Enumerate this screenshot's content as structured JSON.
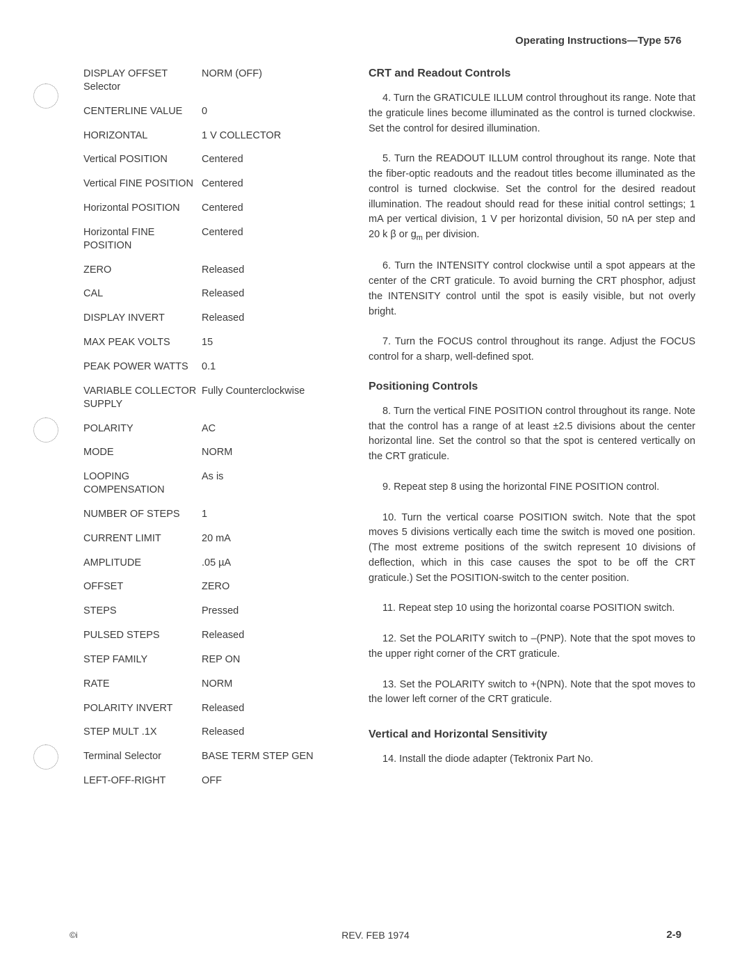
{
  "header": "Operating Instructions—Type 576",
  "settings": [
    {
      "label": "DISPLAY OFFSET Selector",
      "value": "NORM (OFF)"
    },
    {
      "label": "CENTERLINE VALUE",
      "value": "0"
    },
    {
      "label": "HORIZONTAL",
      "value": "1 V COLLECTOR"
    },
    {
      "label": "Vertical POSITION",
      "value": "Centered"
    },
    {
      "label": "Vertical FINE POSITION",
      "value": "Centered"
    },
    {
      "label": "Horizontal POSITION",
      "value": "Centered"
    },
    {
      "label": "Horizontal FINE POSITION",
      "value": "Centered"
    },
    {
      "label": "ZERO",
      "value": "Released"
    },
    {
      "label": "CAL",
      "value": "Released"
    },
    {
      "label": "DISPLAY INVERT",
      "value": "Released"
    },
    {
      "label": "MAX PEAK VOLTS",
      "value": "15"
    },
    {
      "label": "PEAK POWER WATTS",
      "value": "0.1"
    },
    {
      "label": "VARIABLE COLLECTOR SUPPLY",
      "value": "Fully Counterclockwise"
    },
    {
      "label": "POLARITY",
      "value": "AC"
    },
    {
      "label": "MODE",
      "value": "NORM"
    },
    {
      "label": "LOOPING COMPENSATION",
      "value": "As is"
    },
    {
      "label": "NUMBER OF STEPS",
      "value": "1"
    },
    {
      "label": "CURRENT LIMIT",
      "value": "20 mA"
    },
    {
      "label": "AMPLITUDE",
      "value": ".05 µA"
    },
    {
      "label": "OFFSET",
      "value": "ZERO"
    },
    {
      "label": "STEPS",
      "value": "Pressed"
    },
    {
      "label": "PULSED STEPS",
      "value": "Released"
    },
    {
      "label": "STEP FAMILY",
      "value": "REP ON"
    },
    {
      "label": "RATE",
      "value": "NORM"
    },
    {
      "label": "POLARITY INVERT",
      "value": "Released"
    },
    {
      "label": "STEP MULT .1X",
      "value": "Released"
    },
    {
      "label": "Terminal Selector",
      "value": "BASE TERM STEP GEN"
    },
    {
      "label": "LEFT-OFF-RIGHT",
      "value": "OFF"
    }
  ],
  "sections": {
    "crt": {
      "heading": "CRT and Readout Controls",
      "p4": "4. Turn the GRATICULE ILLUM control throughout its range. Note that the graticule lines become illuminated as the control is turned clockwise. Set the control for desired illumination.",
      "p5a": "5. Turn the READOUT ILLUM control throughout its range. Note that the fiber-optic readouts and the readout titles become illuminated as the control is turned clockwise. Set the control for the desired readout illumination. The readout should read for these initial control settings; 1 mA per vertical division, 1 V per horizontal division, 50 nA per step and 20 k  β or g",
      "p5b": " per division.",
      "p6": "6. Turn the INTENSITY control clockwise until a spot appears at the center of the CRT graticule. To avoid burning the CRT phosphor, adjust the INTENSITY control until the spot is easily visible, but not overly bright.",
      "p7": "7. Turn the FOCUS control throughout its range. Adjust the FOCUS control for a sharp, well-defined spot."
    },
    "positioning": {
      "heading": "Positioning Controls",
      "p8": "8. Turn the vertical FINE POSITION control throughout its range. Note that the control has a range of at least ±2.5 divisions about the center horizontal line. Set the control so that the spot is centered vertically on the CRT graticule.",
      "p9": "9. Repeat step 8 using the horizontal FINE POSITION control.",
      "p10": "10. Turn the vertical coarse POSITION switch. Note that the spot moves 5 divisions vertically each time the switch is moved one position. (The most extreme positions of the switch represent 10 divisions of deflection, which in this case causes the spot to be off the CRT graticule.) Set the POSITION-switch to the center position.",
      "p11": "11. Repeat step 10 using the horizontal coarse POSITION switch.",
      "p12": "12. Set the POLARITY switch to –(PNP). Note that the spot moves to the upper right corner of the CRT graticule.",
      "p13": "13. Set the POLARITY switch to +(NPN). Note that the spot moves to the lower left corner of the CRT graticule."
    },
    "sensitivity": {
      "heading": "Vertical and Horizontal Sensitivity",
      "p14": "14. Install the diode adapter (Tektronix Part No."
    }
  },
  "footer": {
    "left": "©i",
    "center": "REV. FEB 1974",
    "right": "2-9"
  },
  "sub_m": "m"
}
